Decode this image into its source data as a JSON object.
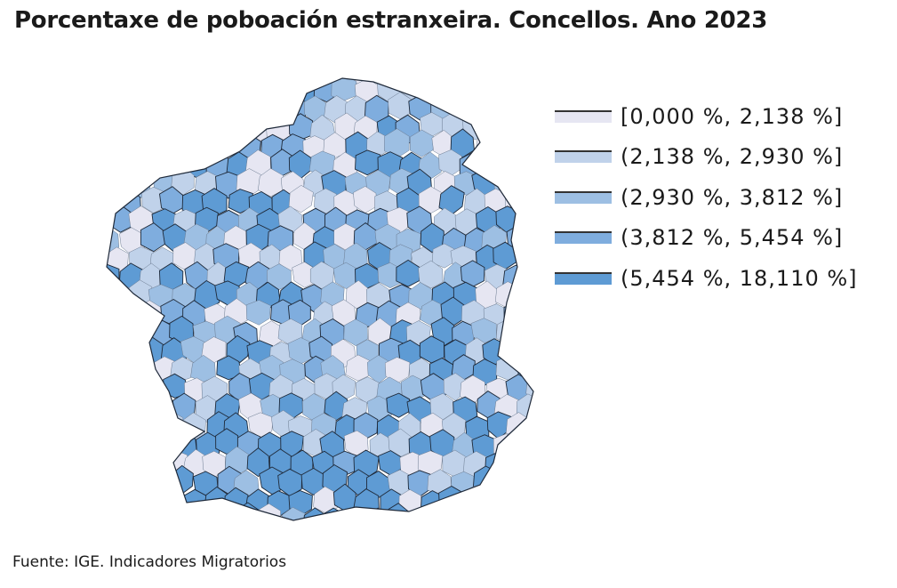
{
  "title": "Porcentaxe de poboación estranxeira. Concellos. Ano 2023",
  "legend": [
    {
      "label": "[0,000 %, 2,138 %]",
      "color": "#e6e6f2"
    },
    {
      "label": "(2,138 %, 2,930 %]",
      "color": "#c0d2ea"
    },
    {
      "label": "(2,930 %, 3,812 %]",
      "color": "#9dbfe3"
    },
    {
      "label": "(3,812 %, 5,454 %]",
      "color": "#7fadde"
    },
    {
      "label": "(5,454 %, 18,110 %]",
      "color": "#5e9bd4"
    }
  ],
  "border_color": "#1f2a3a",
  "source": "Fuente: IGE. Indicadores Migratorios"
}
